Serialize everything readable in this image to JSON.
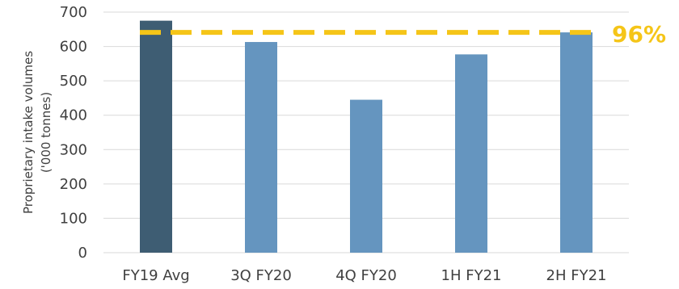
{
  "chart_data": {
    "type": "bar",
    "title": "",
    "categories": [
      "FY19 Avg",
      "3Q FY20",
      "4Q FY20",
      "1H FY21",
      "2H FY21"
    ],
    "values": [
      675,
      613,
      445,
      577,
      641
    ],
    "ylabel_lines": [
      "Proprietary intake volumes",
      "('000 tonnes)"
    ],
    "xlabel": "",
    "ylim": [
      0,
      700
    ],
    "yticks": [
      0,
      100,
      200,
      300,
      400,
      500,
      600,
      700
    ],
    "grid": true,
    "bar_colors": [
      "#3e5d73",
      "#6595bf",
      "#6595bf",
      "#6595bf",
      "#6595bf"
    ],
    "reference_line": {
      "value": 641,
      "style": "dashed",
      "color": "#f5c518"
    },
    "annotation": {
      "text": "96%",
      "color": "#f5c518"
    }
  }
}
